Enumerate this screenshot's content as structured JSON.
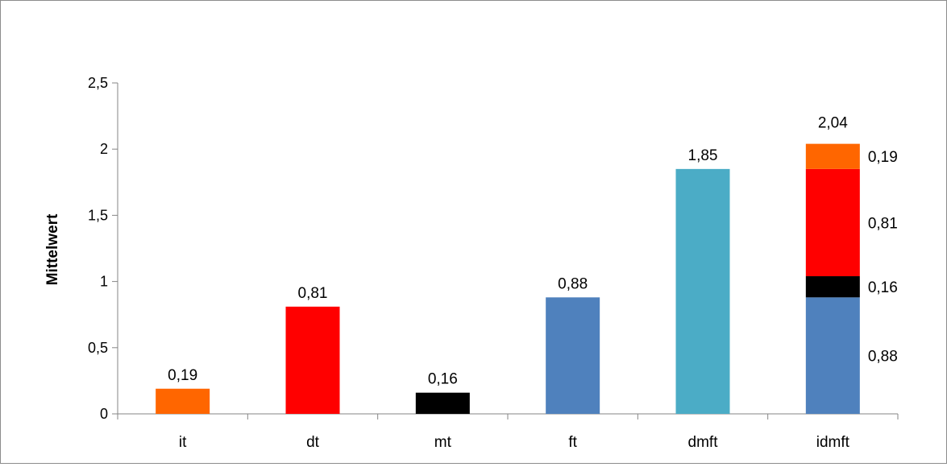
{
  "chart_data": {
    "type": "bar",
    "ylabel": "Mittelwert",
    "ylim": [
      0,
      2.5
    ],
    "yticks": [
      0,
      0.5,
      1,
      1.5,
      2,
      2.5
    ],
    "ytick_labels": [
      "0",
      "0,5",
      "1",
      "1,5",
      "2",
      "2,5"
    ],
    "grid": false,
    "categories": [
      "it",
      "dt",
      "mt",
      "ft",
      "dmft",
      "idmft"
    ],
    "bars": [
      {
        "category": "it",
        "value": 0.19,
        "label": "0,19",
        "color": "#ff6600"
      },
      {
        "category": "dt",
        "value": 0.81,
        "label": "0,81",
        "color": "#ff0000"
      },
      {
        "category": "mt",
        "value": 0.16,
        "label": "0,16",
        "color": "#000000"
      },
      {
        "category": "ft",
        "value": 0.88,
        "label": "0,88",
        "color": "#4f81bd"
      },
      {
        "category": "dmft",
        "value": 1.85,
        "label": "1,85",
        "color": "#4bacc6"
      }
    ],
    "stacked_bar": {
      "category": "idmft",
      "total": 2.04,
      "total_label": "2,04",
      "segments": [
        {
          "value": 0.88,
          "label": "0,88",
          "color": "#4f81bd"
        },
        {
          "value": 0.16,
          "label": "0,16",
          "color": "#000000"
        },
        {
          "value": 0.81,
          "label": "0,81",
          "color": "#ff0000"
        },
        {
          "value": 0.19,
          "label": "0,19",
          "color": "#ff6600"
        }
      ]
    }
  }
}
